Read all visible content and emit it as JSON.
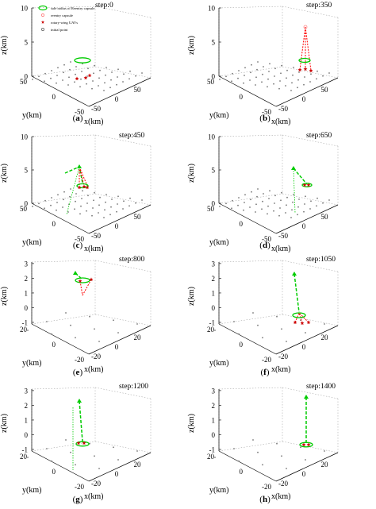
{
  "legend": {
    "items": [
      {
        "label": "safe radius of Reentry capsule",
        "symbol": "ellipse",
        "color": "#00cc00"
      },
      {
        "label": "reentry capsule",
        "symbol": "circle",
        "color": "#ff6666"
      },
      {
        "label": "rotary-wing UAVs",
        "symbol": "star",
        "color": "#cc0000"
      },
      {
        "label": "initial point",
        "symbol": "circle",
        "color": "#555555"
      }
    ]
  },
  "axis_labels": {
    "x": "x(km)",
    "y": "y(km)",
    "z": "z(km)"
  },
  "panels": [
    {
      "id": "a",
      "step": "step:0",
      "caption": "a",
      "z_ticks": [
        "0",
        "5",
        "10"
      ],
      "x_ticks": [
        "-50",
        "0",
        "50"
      ],
      "y_ticks": [
        "50",
        "0",
        "-50"
      ],
      "scene": 0
    },
    {
      "id": "b",
      "step": "step:350",
      "caption": "b",
      "z_ticks": [
        "0",
        "5",
        "10"
      ],
      "x_ticks": [
        "-50",
        "0",
        "50"
      ],
      "y_ticks": [
        "50",
        "0",
        "-50"
      ],
      "scene": 1
    },
    {
      "id": "c",
      "step": "step:450",
      "caption": "c",
      "z_ticks": [
        "0",
        "5",
        "10"
      ],
      "x_ticks": [
        "-50",
        "0",
        "50"
      ],
      "y_ticks": [
        "50",
        "0",
        "-50"
      ],
      "scene": 2
    },
    {
      "id": "d",
      "step": "step:650",
      "caption": "d",
      "z_ticks": [
        "0",
        "5",
        "10"
      ],
      "x_ticks": [
        "-50",
        "0",
        "50"
      ],
      "y_ticks": [
        "50",
        "0",
        "-50"
      ],
      "scene": 3
    },
    {
      "id": "e",
      "step": "step:800",
      "caption": "e",
      "z_ticks": [
        "-1",
        "0",
        "1",
        "2",
        "3"
      ],
      "x_ticks": [
        "-20",
        "0",
        "20"
      ],
      "y_ticks": [
        "20",
        "0",
        "-20"
      ],
      "scene": 4
    },
    {
      "id": "f",
      "step": "step:1050",
      "caption": "f",
      "z_ticks": [
        "-1",
        "0",
        "1",
        "2",
        "3"
      ],
      "x_ticks": [
        "-20",
        "0",
        "20"
      ],
      "y_ticks": [
        "20",
        "0",
        "-20"
      ],
      "scene": 5
    },
    {
      "id": "g",
      "step": "step:1200",
      "caption": "g",
      "z_ticks": [
        "-1",
        "0",
        "1",
        "2",
        "3"
      ],
      "x_ticks": [
        "-20",
        "0",
        "20"
      ],
      "y_ticks": [
        "20",
        "0",
        "-20"
      ],
      "scene": 6
    },
    {
      "id": "h",
      "step": "step:1400",
      "caption": "h",
      "z_ticks": [
        "-1",
        "0",
        "1",
        "2",
        "3"
      ],
      "x_ticks": [
        "-20",
        "0",
        "20"
      ],
      "y_ticks": [
        "20",
        "0",
        "-20"
      ],
      "scene": 7
    }
  ],
  "colors": {
    "capsule_trajectory": "#00cc00",
    "uav_trajectory": "#ff0000",
    "uav_marker": "#cc0000",
    "capsule_marker": "#ff8888",
    "initial_point": "#777777",
    "axis": "#000000",
    "dotted_box": "#999999"
  }
}
